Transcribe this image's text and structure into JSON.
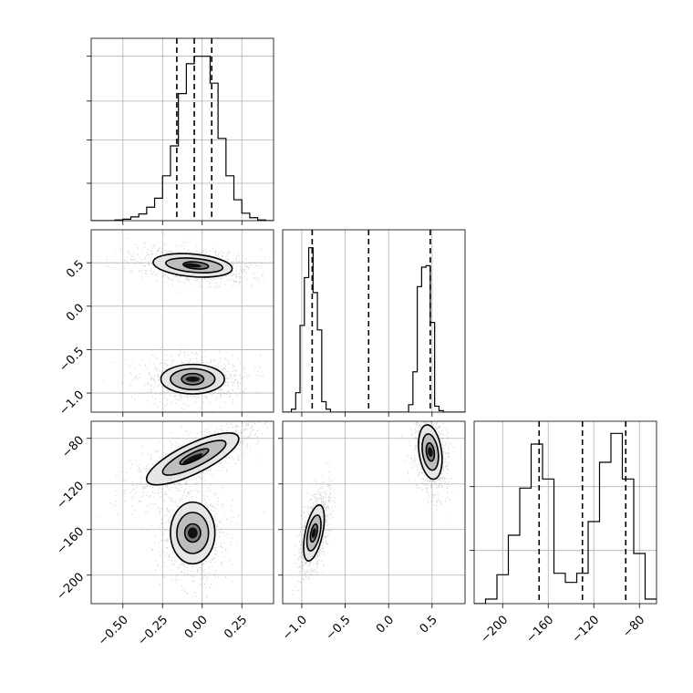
{
  "chart_data": {
    "type": "corner",
    "title": "",
    "grid": true,
    "params": [
      {
        "xlim": [
          -0.7,
          0.45
        ],
        "xticks": [
          -0.5,
          -0.25,
          0.0,
          0.25
        ],
        "xtick_labels": [
          "−0.50",
          "−0.25",
          "0.00",
          "0.25"
        ]
      },
      {
        "xlim": [
          -1.22,
          0.88
        ],
        "xticks": [
          -1.0,
          -0.5,
          0.0,
          0.5
        ],
        "xtick_labels": [
          "−1.0",
          "−0.5",
          "0.0",
          "0.5"
        ]
      },
      {
        "xlim": [
          -225,
          -65
        ],
        "xticks": [
          -200,
          -160,
          -120,
          -80
        ],
        "xtick_labels": [
          "−200",
          "−160",
          "−120",
          "−80"
        ]
      }
    ],
    "row_ylims": [
      null,
      [
        -1.22,
        0.88
      ],
      [
        -225,
        -65
      ]
    ],
    "row_yticks": [
      null,
      [
        0.5,
        0.0,
        -0.5,
        -1.0
      ],
      [
        -80,
        -120,
        -160,
        -200
      ]
    ],
    "row_ytick_labels": [
      null,
      [
        "0.5",
        "0.0",
        "−0.5",
        "−1.0"
      ],
      [
        "−80",
        "−120",
        "−160",
        "−200"
      ]
    ],
    "hist_ylims": [
      [
        0,
        1.22
      ],
      [
        0,
        1.22
      ],
      [
        0,
        1.2
      ]
    ],
    "hist_yticks": [
      [
        0.25,
        0.54,
        0.8,
        1.1
      ],
      [],
      [
        0.35,
        0.77
      ]
    ],
    "quantiles": [
      [
        -0.16,
        -0.05,
        0.06
      ],
      [
        -0.88,
        -0.23,
        0.48
      ],
      [
        -168,
        -130,
        -92
      ]
    ],
    "histograms": [
      {
        "edges": [
          -0.7,
          -0.65,
          -0.6,
          -0.55,
          -0.5,
          -0.45,
          -0.4,
          -0.35,
          -0.3,
          -0.25,
          -0.2,
          -0.15,
          -0.1,
          -0.05,
          0.0,
          0.05,
          0.1,
          0.15,
          0.2,
          0.25,
          0.3,
          0.35,
          0.4,
          0.45
        ],
        "counts": [
          0,
          0,
          0,
          0.005,
          0.01,
          0.025,
          0.045,
          0.09,
          0.15,
          0.3,
          0.5,
          0.85,
          1.05,
          1.1,
          1.1,
          0.92,
          0.55,
          0.3,
          0.14,
          0.05,
          0.02,
          0.005,
          0
        ]
      },
      {
        "edges": [
          -1.22,
          -1.17,
          -1.12,
          -1.07,
          -1.02,
          -0.97,
          -0.92,
          -0.87,
          -0.82,
          -0.77,
          -0.72,
          -0.67,
          -0.62,
          -0.57,
          -0.52,
          -0.47,
          -0.42,
          -0.37,
          -0.32,
          -0.27,
          -0.22,
          -0.17,
          -0.12,
          -0.07,
          -0.02,
          0.03,
          0.08,
          0.13,
          0.18,
          0.23,
          0.28,
          0.33,
          0.38,
          0.43,
          0.48,
          0.53,
          0.58,
          0.63,
          0.68,
          0.73,
          0.78,
          0.83,
          0.88
        ],
        "counts": [
          0,
          0,
          0.02,
          0.13,
          0.58,
          0.9,
          1.1,
          0.8,
          0.55,
          0.07,
          0.02,
          0,
          0,
          0,
          0,
          0,
          0,
          0,
          0,
          0,
          0,
          0,
          0,
          0,
          0,
          0,
          0,
          0,
          0,
          0.05,
          0.27,
          0.84,
          0.97,
          0.98,
          0.6,
          0.04,
          0.01,
          0,
          0,
          0,
          0,
          0
        ]
      },
      {
        "edges": [
          -225,
          -215,
          -205,
          -195,
          -185,
          -175,
          -165,
          -155,
          -145,
          -135,
          -125,
          -115,
          -105,
          -95,
          -85,
          -75,
          -65
        ],
        "counts": [
          0,
          0.03,
          0.19,
          0.45,
          0.76,
          1.05,
          0.82,
          0.2,
          0.14,
          0.2,
          0.54,
          0.93,
          1.12,
          0.82,
          0.33,
          0.03
        ]
      }
    ],
    "contours": {
      "1_0": [
        {
          "cx": -0.06,
          "cy": 0.47,
          "rx": 0.25,
          "ry": 0.13,
          "theta": -5
        },
        {
          "cx": -0.05,
          "cy": 0.47,
          "rx": 0.18,
          "ry": 0.08,
          "theta": -5
        },
        {
          "cx": -0.04,
          "cy": 0.47,
          "rx": 0.08,
          "ry": 0.04,
          "theta": -5
        },
        {
          "cx": -0.06,
          "cy": -0.84,
          "rx": 0.2,
          "ry": 0.17,
          "theta": 0
        },
        {
          "cx": -0.06,
          "cy": -0.84,
          "rx": 0.14,
          "ry": 0.12,
          "theta": 0
        },
        {
          "cx": -0.06,
          "cy": -0.84,
          "rx": 0.07,
          "ry": 0.065,
          "theta": 0
        }
      ],
      "2_0": [
        {
          "cx": -0.06,
          "cy": -98,
          "rx": 0.32,
          "ry": 13,
          "theta": 26
        },
        {
          "cx": -0.05,
          "cy": -97,
          "rx": 0.22,
          "ry": 8,
          "theta": 26
        },
        {
          "cx": -0.05,
          "cy": -96,
          "rx": 0.1,
          "ry": 3.5,
          "theta": 26
        },
        {
          "cx": -0.06,
          "cy": -163,
          "rx": 0.14,
          "ry": 27,
          "theta": 0
        },
        {
          "cx": -0.06,
          "cy": -163,
          "rx": 0.1,
          "ry": 18,
          "theta": 0
        },
        {
          "cx": -0.06,
          "cy": -163,
          "rx": 0.05,
          "ry": 8,
          "theta": 0
        }
      ],
      "2_1": [
        {
          "cx": -0.86,
          "cy": -163,
          "rx": 0.1,
          "ry": 25,
          "theta": -12
        },
        {
          "cx": -0.86,
          "cy": -163,
          "rx": 0.07,
          "ry": 16,
          "theta": -12
        },
        {
          "cx": -0.86,
          "cy": -163,
          "rx": 0.035,
          "ry": 8,
          "theta": -12
        },
        {
          "cx": 0.48,
          "cy": -92,
          "rx": 0.13,
          "ry": 24,
          "theta": 8
        },
        {
          "cx": 0.48,
          "cy": -92,
          "rx": 0.09,
          "ry": 16,
          "theta": 8
        },
        {
          "cx": 0.48,
          "cy": -92,
          "rx": 0.045,
          "ry": 8,
          "theta": 8
        }
      ]
    }
  }
}
